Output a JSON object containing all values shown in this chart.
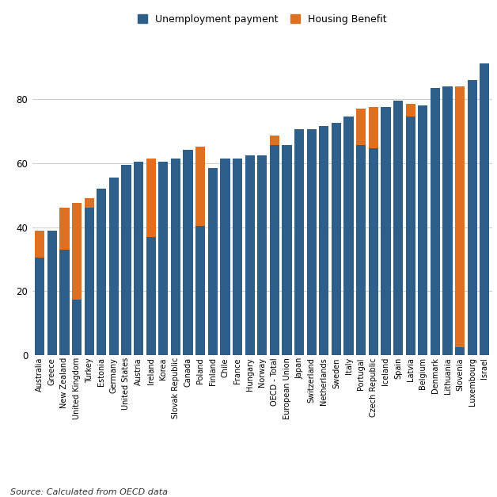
{
  "countries": [
    "Australia",
    "Greece",
    "New Zealand",
    "United Kingdom",
    "Turkey",
    "Estonia",
    "Germany",
    "United States",
    "Austria",
    "Ireland",
    "Korea",
    "Slovak Republic",
    "Canada",
    "Poland",
    "Finland",
    "Chile",
    "France",
    "Hungary",
    "Norway",
    "OECD - Total",
    "European Union",
    "Japan",
    "Switzerland",
    "Netherlands",
    "Sweden",
    "Italy",
    "Portugal",
    "Czech Republic",
    "Iceland",
    "Spain",
    "Latvia",
    "Belgium",
    "Denmark",
    "Lithuania",
    "Slovenia",
    "Luxembourg",
    "Israel"
  ],
  "unemployment": [
    30.5,
    39.0,
    33.0,
    17.5,
    46.0,
    52.0,
    55.5,
    59.5,
    60.5,
    37.0,
    60.5,
    61.5,
    64.0,
    40.5,
    58.5,
    61.5,
    61.5,
    62.5,
    62.5,
    65.5,
    65.5,
    70.5,
    70.5,
    71.5,
    72.5,
    74.5,
    65.5,
    64.5,
    77.5,
    79.5,
    74.5,
    78.0,
    83.5,
    84.0,
    2.5,
    86.0,
    91.0
  ],
  "housing": [
    8.5,
    0,
    13.0,
    30.0,
    3.0,
    0,
    0,
    0,
    0,
    24.5,
    0,
    0,
    0,
    24.5,
    0,
    0,
    0,
    0,
    0,
    3.0,
    0,
    0,
    0,
    0,
    0,
    0,
    11.5,
    13.0,
    0,
    0,
    4.0,
    0,
    0,
    0,
    81.5,
    0,
    0
  ],
  "unemployment_color": "#2E5F8A",
  "housing_color": "#E07020",
  "source_text": "Source: Calculated from OECD data",
  "legend_unemployment": "Unemployment payment",
  "legend_housing": "Housing Benefit",
  "ylim": [
    0,
    100
  ],
  "yticks": [
    0,
    20,
    40,
    60,
    80
  ],
  "grid_color": "#d0d0d0"
}
